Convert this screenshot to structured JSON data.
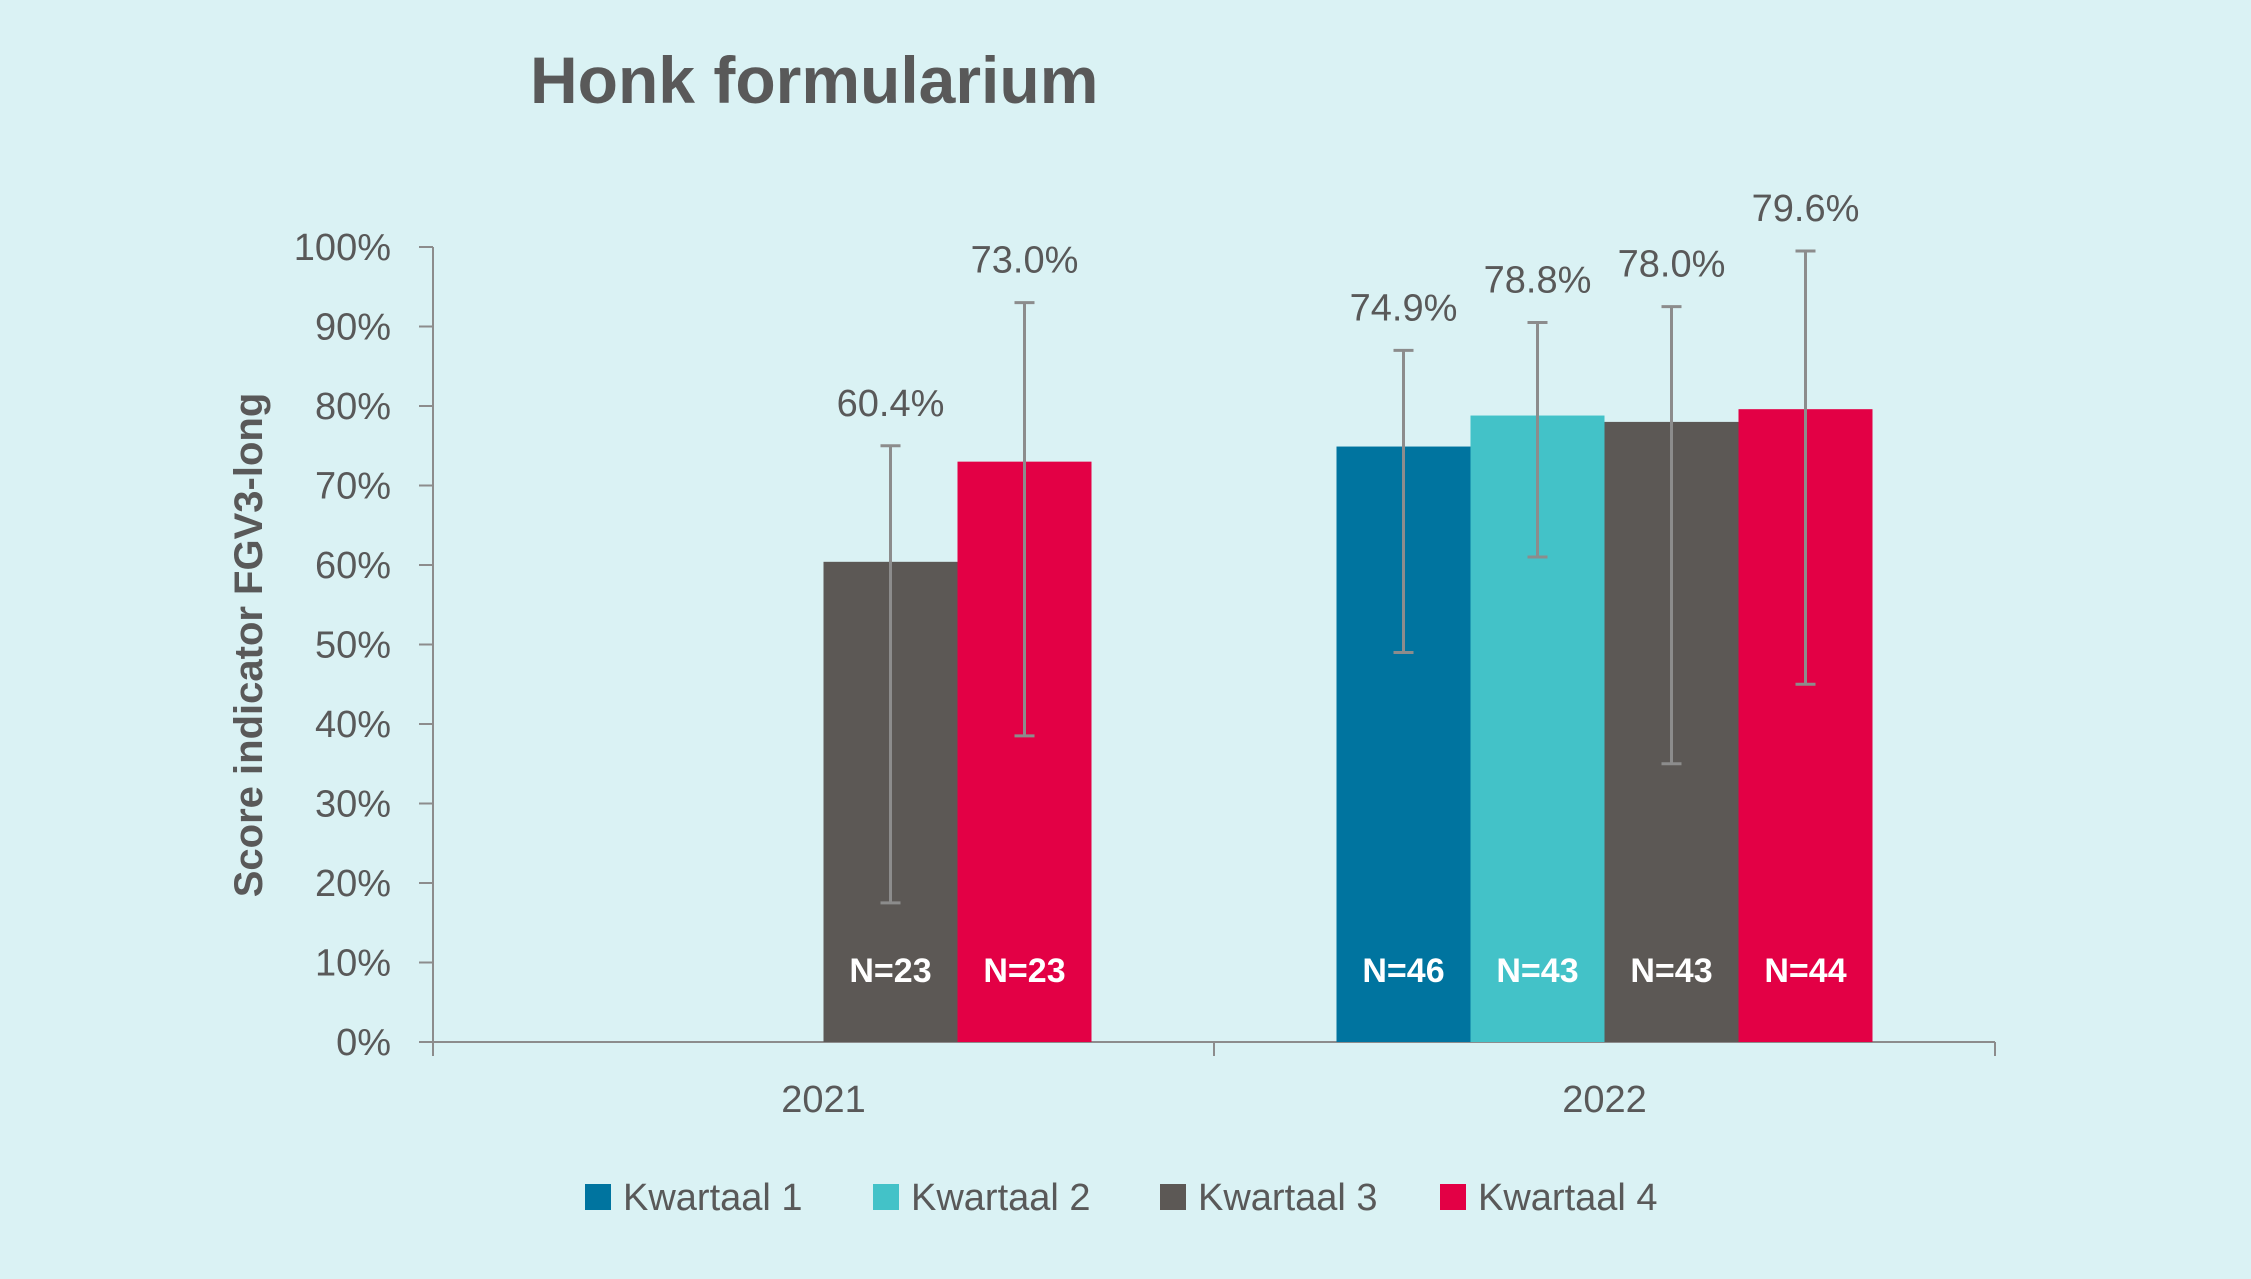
{
  "chart_data": {
    "type": "bar",
    "title": "Honk formularium",
    "ylabel": "Score indicator FGV3-long",
    "xlabel": "",
    "ylim": [
      0,
      100
    ],
    "yticks": [
      "0%",
      "10%",
      "20%",
      "30%",
      "40%",
      "50%",
      "60%",
      "70%",
      "80%",
      "90%",
      "100%"
    ],
    "categories": [
      "2021",
      "2022"
    ],
    "grid": false,
    "legend_position": "bottom",
    "series": [
      {
        "name": "Kwartaal 1",
        "color": "#00749f",
        "values": [
          null,
          74.9
        ],
        "labels": [
          "",
          "74.9%"
        ],
        "err_low": [
          null,
          49.0
        ],
        "err_high": [
          null,
          87.0
        ],
        "n": [
          "",
          "N=46"
        ]
      },
      {
        "name": "Kwartaal 2",
        "color": "#43c2c8",
        "values": [
          null,
          78.8
        ],
        "labels": [
          "",
          "78.8%"
        ],
        "err_low": [
          null,
          61.0
        ],
        "err_high": [
          null,
          90.5
        ],
        "n": [
          "",
          "N=43"
        ]
      },
      {
        "name": "Kwartaal 3",
        "color": "#5c5855",
        "values": [
          60.4,
          78.0
        ],
        "labels": [
          "60.4%",
          "78.0%"
        ],
        "err_low": [
          17.5,
          35.0
        ],
        "err_high": [
          75.0,
          92.5
        ],
        "n": [
          "N=23",
          "N=43"
        ]
      },
      {
        "name": "Kwartaal 4",
        "color": "#e30045",
        "values": [
          73.0,
          79.6
        ],
        "labels": [
          "73.0%",
          "79.6%"
        ],
        "err_low": [
          38.5,
          45.0
        ],
        "err_high": [
          93.0,
          99.5
        ],
        "n": [
          "N=23",
          "N=44"
        ]
      }
    ]
  }
}
